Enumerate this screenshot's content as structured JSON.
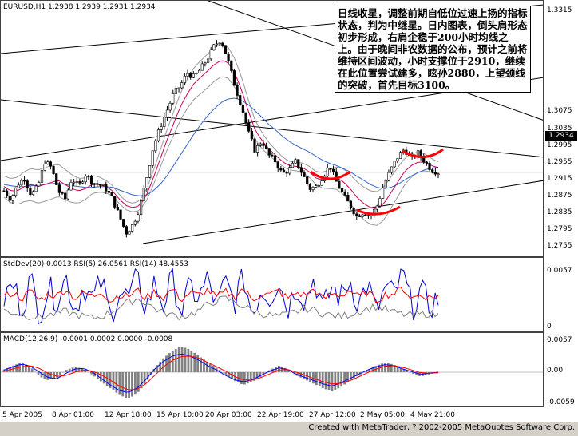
{
  "header": {
    "symbol_line": "EURUSD,H1  1.2938 1.2939 1.2931 1.2934",
    "stddev_line": "StdDev(20) 0.0013  RSI(5) 26.0561  RSI(14) 48.4553",
    "macd_line": "MACD(12,26,9) -0.0001 0.0002 0.0000 -0.0008"
  },
  "annotation_text": "日线收星，调整前期自低位过速上扬的指标状态，判为中继星。日内图表，倒头肩形态初步形成，右肩企稳于200小时均线之上。由于晚间非农数据的公布，预计之前将维持区间波动，小时支撑位于2910，继续在此位置尝试建多，眩孙2880，上望颈线的突破，首先目标3100。",
  "last_price": "1.2934",
  "footer": {
    "copyright": "Created with MetaTrader, ? 2002-2005 MetaQuotes Software Corp."
  },
  "colors": {
    "candles": "#000000",
    "ma_fast": "#cc0055",
    "ma_slow": "#3366cc",
    "bands": "#999999",
    "highlight": "#ff0000",
    "rsi_fast": "#0000cc",
    "rsi_slow": "#ff0000",
    "stddev": "#808080",
    "macd_hist": "#808080",
    "macd_line": "#0000ff",
    "macd_signal": "#ff0000"
  },
  "chart_data": [
    {
      "type": "candlestick",
      "title": "EURUSD,H1",
      "ylim": [
        1.2742,
        1.333
      ],
      "y_ticks": [
        "1.3315",
        "1.3075",
        "1.3035",
        "1.2995",
        "1.2955",
        "1.2915",
        "1.2875",
        "1.2835",
        "1.2795",
        "1.2755"
      ],
      "x_ticks": [
        "5 Apr 2005",
        "8 Apr 01:00",
        "12 Apr 18:00",
        "15 Apr 10:00",
        "20 Apr 03:00",
        "22 Apr 19:00",
        "27 Apr 12:00",
        "2 May 05:00",
        "4 May 21:00"
      ],
      "close_path": [
        1.289,
        1.287,
        1.2905,
        1.292,
        1.288,
        1.29,
        1.296,
        1.2945,
        1.289,
        1.287,
        1.292,
        1.29,
        1.293,
        1.291,
        1.2905,
        1.2895,
        1.287,
        1.283,
        1.279,
        1.281,
        1.285,
        1.292,
        1.2995,
        1.304,
        1.308,
        1.312,
        1.314,
        1.317,
        1.316,
        1.318,
        1.3205,
        1.3235,
        1.325,
        1.32,
        1.314,
        1.309,
        1.303,
        1.2985,
        1.301,
        1.2975,
        1.296,
        1.293,
        1.294,
        1.296,
        1.293,
        1.2895,
        1.29,
        1.2925,
        1.295,
        1.291,
        1.288,
        1.2855,
        1.283,
        1.284,
        1.283,
        1.2855,
        1.2905,
        1.294,
        1.297,
        1.299,
        1.2965,
        1.298,
        1.296,
        1.294,
        1.2934
      ],
      "ma_fast": [
        1.29,
        1.289,
        1.289,
        1.29,
        1.2905,
        1.29,
        1.2905,
        1.291,
        1.2915,
        1.2905,
        1.2895,
        1.289,
        1.2895,
        1.2905,
        1.2905,
        1.29,
        1.289,
        1.287,
        1.2855,
        1.285,
        1.2855,
        1.288,
        1.292,
        1.2965,
        1.301,
        1.305,
        1.309,
        1.312,
        1.3145,
        1.316,
        1.3175,
        1.319,
        1.32,
        1.3195,
        1.317,
        1.313,
        1.308,
        1.3035,
        1.301,
        1.299,
        1.2975,
        1.296,
        1.295,
        1.2948,
        1.2945,
        1.2935,
        1.292,
        1.2915,
        1.2918,
        1.292,
        1.2912,
        1.2895,
        1.2875,
        1.286,
        1.285,
        1.2848,
        1.286,
        1.2885,
        1.291,
        1.2935,
        1.295,
        1.2958,
        1.2958,
        1.295,
        1.2945
      ],
      "ma_slow": [
        1.2905,
        1.2902,
        1.29,
        1.29,
        1.2902,
        1.2903,
        1.2905,
        1.2907,
        1.2908,
        1.2905,
        1.2902,
        1.29,
        1.2898,
        1.2898,
        1.29,
        1.29,
        1.2898,
        1.2892,
        1.2886,
        1.288,
        1.2878,
        1.288,
        1.289,
        1.2905,
        1.2925,
        1.295,
        1.2975,
        1.3,
        1.3025,
        1.3048,
        1.3068,
        1.3085,
        1.31,
        1.3108,
        1.311,
        1.3105,
        1.3095,
        1.308,
        1.3065,
        1.3048,
        1.3035,
        1.302,
        1.3008,
        1.2998,
        1.299,
        1.2982,
        1.2972,
        1.2962,
        1.2955,
        1.295,
        1.2943,
        1.2935,
        1.2925,
        1.2915,
        1.2905,
        1.2898,
        1.2895,
        1.2898,
        1.2905,
        1.2915,
        1.2925,
        1.2933,
        1.294,
        1.2944,
        1.2946
      ]
    },
    {
      "type": "line",
      "title": "StdDev(20) 0.0013  RSI(5) 26.0561  RSI(14) 48.4553",
      "ylim": [
        0,
        0.006
      ],
      "y_ticks": [
        "0.0057",
        "0"
      ],
      "series": [
        {
          "name": "RSI(5)",
          "values": [
            0.003,
            0.0045,
            0.002,
            0.005,
            0.0015,
            0.004,
            0.003,
            0.0052,
            0.0018,
            0.0044,
            0.0028,
            0.0048,
            0.0012,
            0.0038,
            0.003,
            0.005,
            0.002,
            0.0046,
            0.0024,
            0.0052,
            0.0016,
            0.0042,
            0.003,
            0.005,
            0.0022,
            0.0046,
            0.0026,
            0.0054,
            0.0014,
            0.004,
            0.0032,
            0.0048,
            0.002,
            0.0044,
            0.0028,
            0.0052,
            0.0018,
            0.0042,
            0.003,
            0.005,
            0.0024,
            0.0046,
            0.0016,
            0.004,
            0.0034,
            0.0056,
            0.002,
            0.0038,
            0.0022,
            0.003
          ]
        },
        {
          "name": "RSI(14)",
          "values": [
            0.0032,
            0.0036,
            0.003,
            0.0038,
            0.0028,
            0.0035,
            0.0033,
            0.004,
            0.003,
            0.0036,
            0.0032,
            0.0038,
            0.0027,
            0.0034,
            0.0032,
            0.0039,
            0.003,
            0.0037,
            0.0031,
            0.004,
            0.0029,
            0.0036,
            0.0033,
            0.0039,
            0.0031,
            0.0037,
            0.0032,
            0.0041,
            0.0028,
            0.0035,
            0.0034,
            0.0038,
            0.003,
            0.0036,
            0.0033,
            0.004,
            0.0029,
            0.0035,
            0.0033,
            0.0039,
            0.0031,
            0.0037,
            0.0028,
            0.0034,
            0.0035,
            0.0041,
            0.003,
            0.0034,
            0.0031,
            0.0033
          ]
        },
        {
          "name": "StdDev(20)",
          "values": [
            0.0018,
            0.0016,
            0.0014,
            0.0012,
            0.0011,
            0.0013,
            0.0015,
            0.0017,
            0.0014,
            0.0012,
            0.001,
            0.0012,
            0.0016,
            0.0022,
            0.0026,
            0.003,
            0.0026,
            0.002,
            0.0016,
            0.0013,
            0.0012,
            0.0014,
            0.0018,
            0.0024,
            0.0028,
            0.003,
            0.0027,
            0.0022,
            0.0018,
            0.0015,
            0.0013,
            0.0012,
            0.0014,
            0.0017,
            0.002,
            0.0018,
            0.0015,
            0.0013,
            0.0012,
            0.0014,
            0.0017,
            0.002,
            0.0022,
            0.0019,
            0.0016,
            0.0014,
            0.0013,
            0.0014,
            0.0015,
            0.0013
          ]
        }
      ]
    },
    {
      "type": "bar",
      "title": "MACD(12,26,9) -0.0001 0.0002 0.0000 -0.0008",
      "ylim": [
        -0.0061,
        0.0061
      ],
      "y_ticks": [
        "0.0057",
        "0.00",
        "-0.0059"
      ],
      "values": [
        0.0005,
        0.0012,
        0.0018,
        0.001,
        -0.0008,
        -0.0015,
        -0.001,
        0.0004,
        0.001,
        0.0006,
        -0.0005,
        -0.0018,
        -0.003,
        -0.0042,
        -0.005,
        -0.004,
        -0.002,
        0.0008,
        0.0026,
        0.004,
        0.0048,
        0.0042,
        0.003,
        0.0018,
        0.0008,
        -0.0004,
        -0.0016,
        -0.0024,
        -0.0018,
        -0.0008,
        0.0004,
        0.0012,
        0.0006,
        -0.0006,
        -0.0014,
        -0.0022,
        -0.003,
        -0.0036,
        -0.0028,
        -0.0016,
        -0.0006,
        0.0004,
        0.0012,
        0.0018,
        0.0014,
        0.0006,
        -0.0002,
        -0.0008,
        -0.0004,
        0.0
      ],
      "series": [
        {
          "name": "MACD",
          "values": [
            0.0004,
            0.001,
            0.0015,
            0.0011,
            0.0,
            -0.001,
            -0.0012,
            -0.0002,
            0.0006,
            0.0007,
            0.0,
            -0.0012,
            -0.0024,
            -0.0034,
            -0.0038,
            -0.003,
            -0.0014,
            0.0006,
            0.002,
            0.003,
            0.0034,
            0.003,
            0.0022,
            0.0012,
            0.0004,
            -0.0006,
            -0.0014,
            -0.0018,
            -0.0014,
            -0.0006,
            0.0002,
            0.0008,
            0.0005,
            -0.0004,
            -0.001,
            -0.0016,
            -0.0022,
            -0.0026,
            -0.002,
            -0.0012,
            -0.0004,
            0.0004,
            0.001,
            0.0014,
            0.0012,
            0.0006,
            0.0001,
            -0.0004,
            -0.0002,
            0.0
          ]
        },
        {
          "name": "Signal",
          "values": [
            0.0002,
            0.0006,
            0.001,
            0.0012,
            0.0007,
            -0.0002,
            -0.0008,
            -0.0006,
            0.0,
            0.0004,
            0.0002,
            -0.0005,
            -0.0015,
            -0.0026,
            -0.0033,
            -0.0032,
            -0.0022,
            -0.0006,
            0.001,
            0.0022,
            0.0029,
            0.003,
            0.0026,
            0.0018,
            0.001,
            0.0002,
            -0.0008,
            -0.0014,
            -0.0015,
            -0.001,
            -0.0003,
            0.0004,
            0.0005,
            0.0,
            -0.0006,
            -0.0012,
            -0.0018,
            -0.0022,
            -0.0021,
            -0.0016,
            -0.0009,
            -0.0001,
            0.0006,
            0.0011,
            0.0012,
            0.0009,
            0.0004,
            -0.0001,
            -0.0002,
            -0.0001
          ]
        }
      ]
    }
  ]
}
